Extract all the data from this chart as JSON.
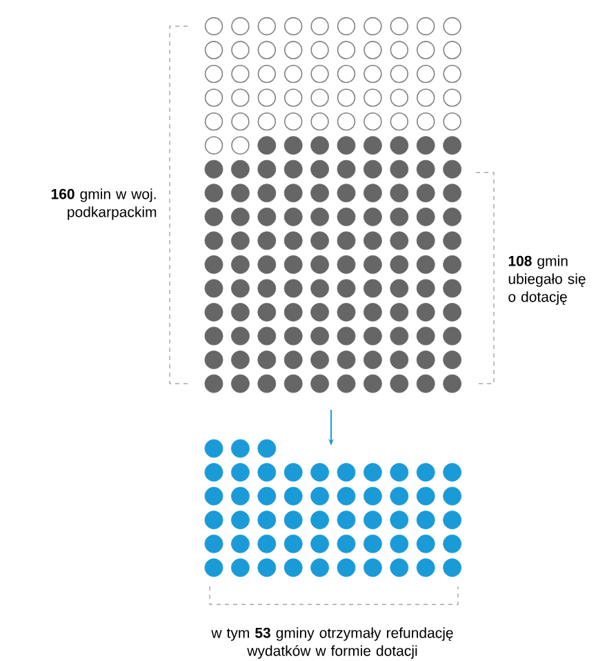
{
  "chart_data": {
    "type": "other",
    "categories": [
      "gmin w woj. podkarpackim",
      "gmin ubiegało się o dotację",
      "gminy otrzymały refundację wydatków w formie dotacji"
    ],
    "values": [
      160,
      108,
      53
    ],
    "data_labels": true,
    "annotations": [
      "w tym"
    ],
    "colors": [
      "#808080",
      "#666666",
      "#1a9bd7"
    ]
  }
}
